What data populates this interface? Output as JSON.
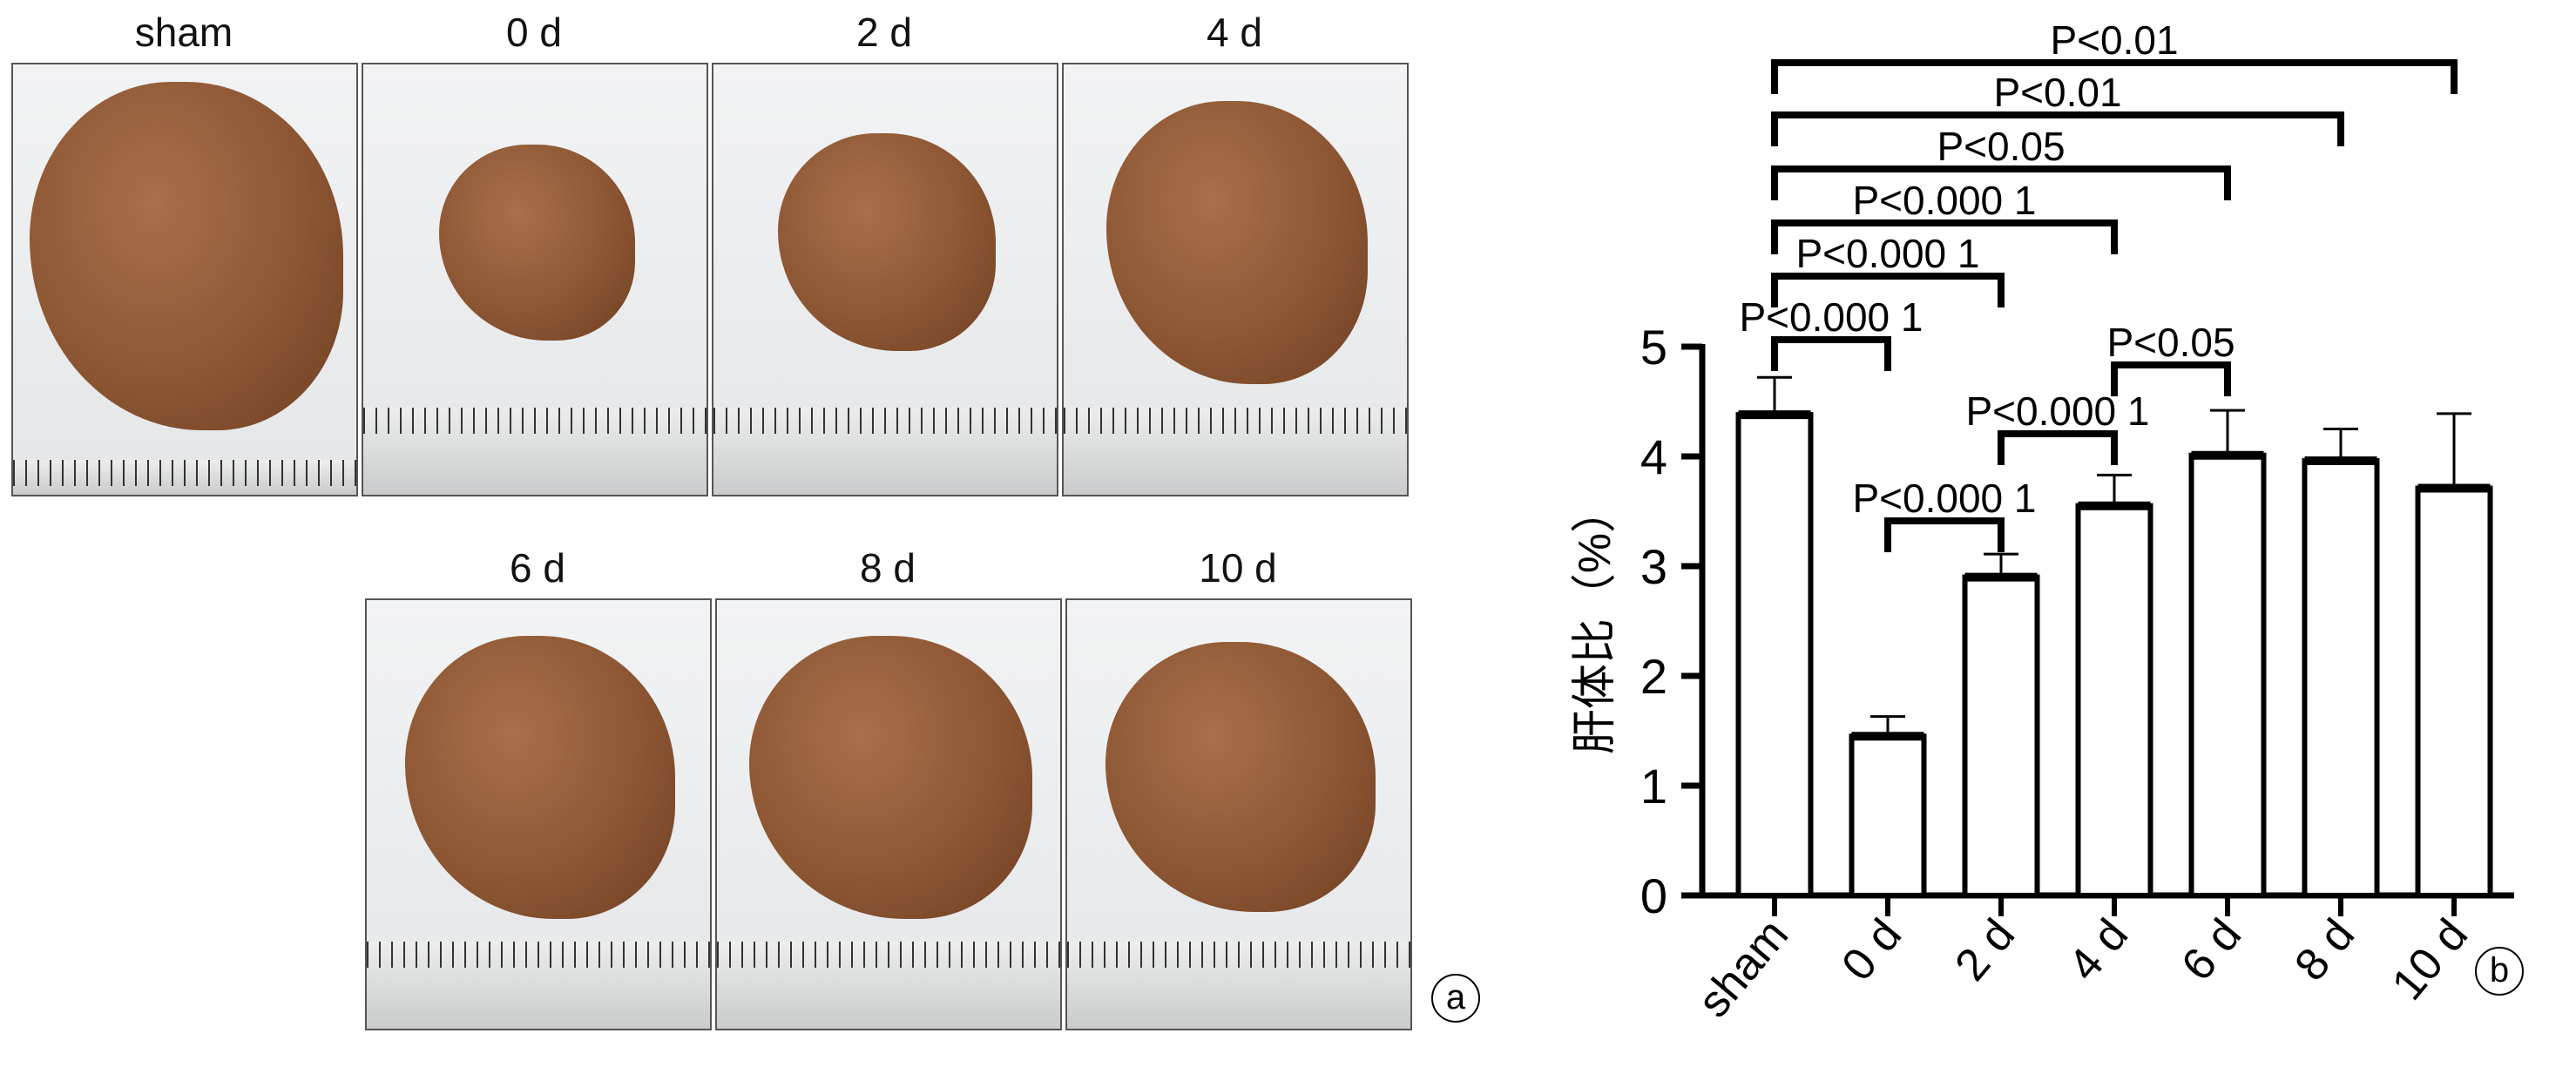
{
  "panel_a": {
    "label": "a",
    "photos": [
      "sham",
      "0 d",
      "2 d",
      "4 d",
      "6 d",
      "8 d",
      "10 d"
    ]
  },
  "panel_b": {
    "label": "b"
  },
  "chart_data": {
    "type": "bar",
    "categories": [
      "sham",
      "0 d",
      "2 d",
      "4 d",
      "6 d",
      "8 d",
      "10 d"
    ],
    "values": [
      4.38,
      1.45,
      2.9,
      3.55,
      4.01,
      3.96,
      3.71
    ],
    "error_upper": [
      4.72,
      1.63,
      3.11,
      3.83,
      4.42,
      4.25,
      4.39
    ],
    "ylabel": "肝体比（%）",
    "ylim": [
      0,
      5
    ],
    "yticks": [
      "0",
      "1",
      "2",
      "3",
      "4",
      "5"
    ],
    "grid": false,
    "bar_fill": "#ffffff",
    "significance": [
      {
        "from": 0,
        "to": 6,
        "label": "P<0.01"
      },
      {
        "from": 0,
        "to": 5,
        "label": "P<0.01"
      },
      {
        "from": 0,
        "to": 4,
        "label": "P<0.05"
      },
      {
        "from": 0,
        "to": 3,
        "label": "P<0.000 1"
      },
      {
        "from": 0,
        "to": 2,
        "label": "P<0.000 1"
      },
      {
        "from": 0,
        "to": 1,
        "label": "P<0.000 1"
      },
      {
        "from": 3,
        "to": 4,
        "label": "P<0.05"
      },
      {
        "from": 2,
        "to": 3,
        "label": "P<0.000 1"
      },
      {
        "from": 1,
        "to": 2,
        "label": "P<0.000 1"
      }
    ]
  }
}
